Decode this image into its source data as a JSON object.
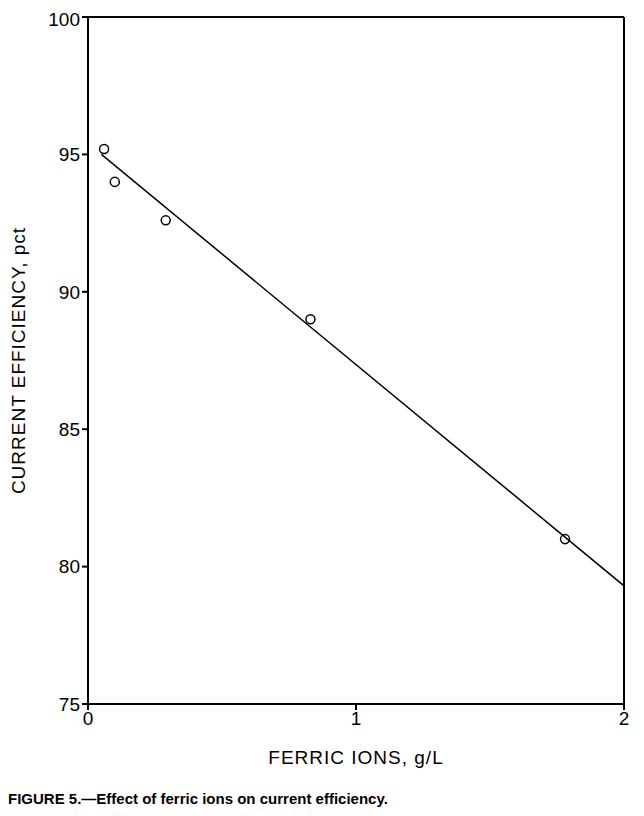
{
  "chart_data": {
    "type": "scatter",
    "title": "FIGURE 5.—Effect of ferric ions on current efficiency.",
    "x_label": "FERRIC IONS, g/L",
    "y_label": "CURRENT EFFICIENCY, pct",
    "xlim": [
      0,
      2
    ],
    "xticks": [
      0,
      1,
      2
    ],
    "ylim": [
      75,
      100
    ],
    "yticks": [
      75,
      80,
      85,
      90,
      95,
      100
    ],
    "series": [
      {
        "type": "scatter",
        "marker": "circle",
        "color": "#000000",
        "x": [
          0.06,
          0.1,
          0.29,
          0.83,
          1.78
        ],
        "values": [
          95.2,
          94.0,
          92.6,
          89.0,
          81.0
        ]
      },
      {
        "type": "line",
        "line_style": "solid",
        "color": "#000000",
        "x": [
          0.05,
          2
        ],
        "values": [
          95.0,
          79.3
        ]
      }
    ]
  }
}
